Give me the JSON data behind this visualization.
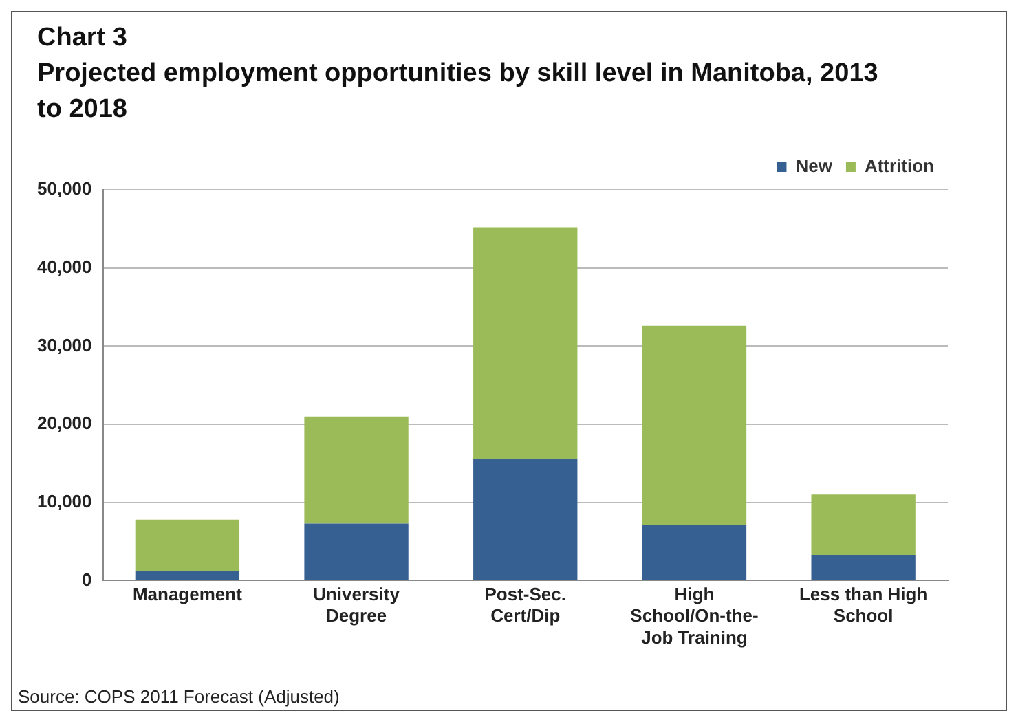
{
  "chart_data": {
    "type": "bar",
    "title": "Chart 3",
    "subtitle": "Projected employment opportunities by skill level in Manitoba, 2013 to 2018",
    "categories": [
      "Management",
      "University Degree",
      "Post-Sec. Cert/Dip",
      "High School/On-the-Job Training",
      "Less than High School"
    ],
    "series": [
      {
        "name": "New",
        "color": "#376092",
        "values": [
          1200,
          7300,
          15600,
          7100,
          3300
        ]
      },
      {
        "name": "Attrition",
        "color": "#9bbb59",
        "values": [
          6600,
          13700,
          29600,
          25500,
          7700
        ]
      }
    ],
    "stacked": true,
    "ylim": [
      0,
      50000
    ],
    "yticks": [
      {
        "value": 0,
        "label": "0"
      },
      {
        "value": 10000,
        "label": "10,000"
      },
      {
        "value": 20000,
        "label": "20,000"
      },
      {
        "value": 30000,
        "label": "30,000"
      },
      {
        "value": 40000,
        "label": "40,000"
      },
      {
        "value": 50000,
        "label": "50,000"
      }
    ],
    "grid": "y",
    "legend": "top right",
    "annotations": [
      "Source: COPS 2011 Forecast (Adjusted)"
    ]
  }
}
